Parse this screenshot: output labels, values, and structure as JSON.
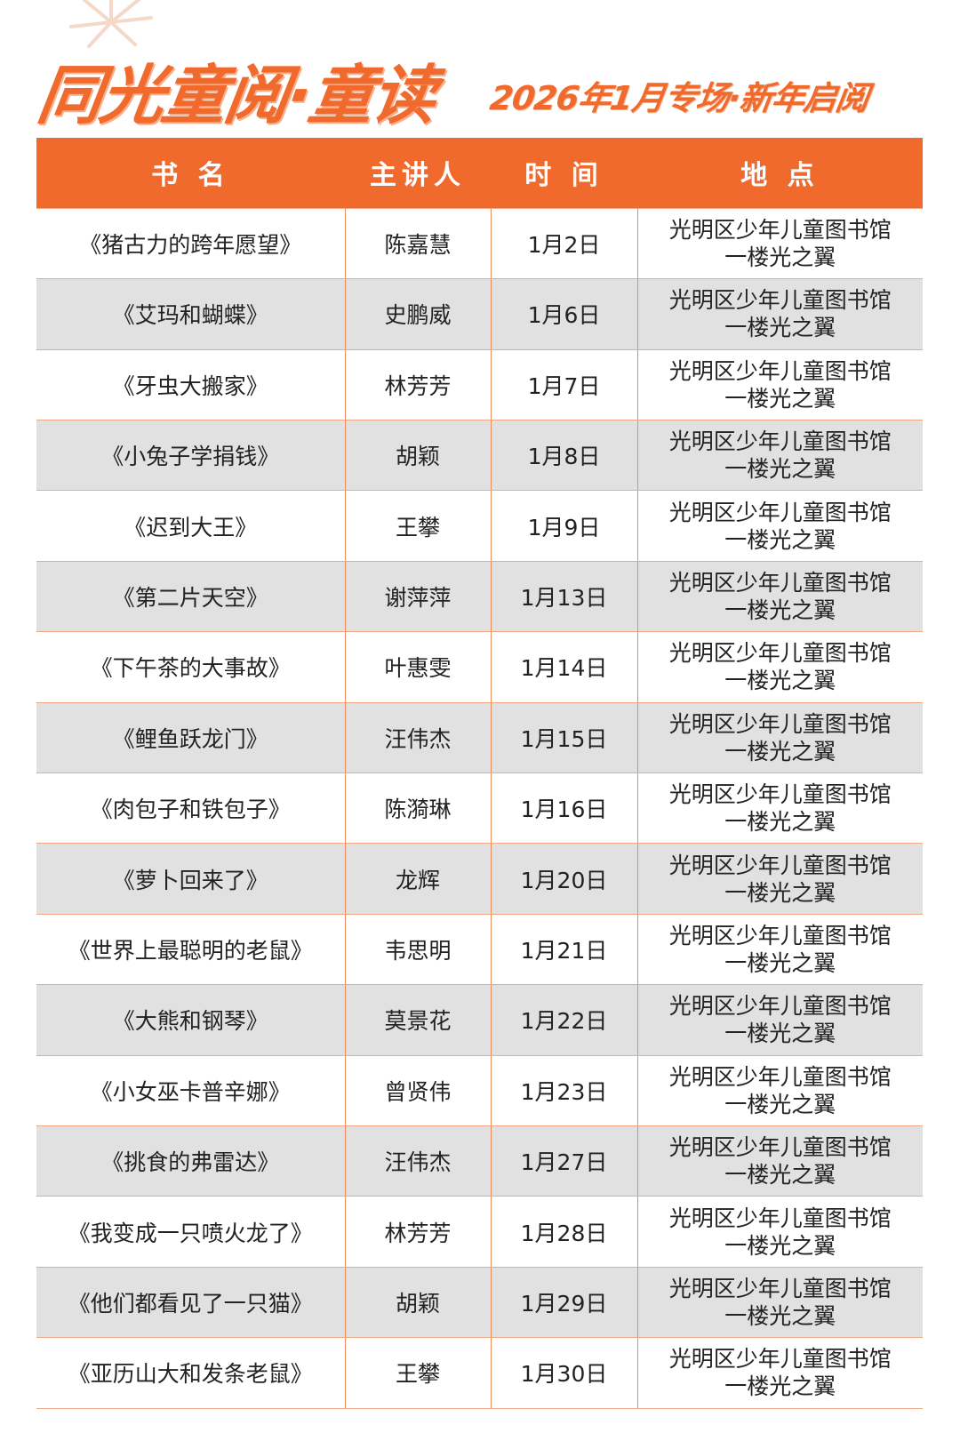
{
  "header": {
    "title": "同光童阅·童读",
    "subtitle": "2026年1月专场·新年启阅"
  },
  "table": {
    "columns": [
      "书 名",
      "主讲人",
      "时 间",
      "地 点"
    ],
    "rows": [
      {
        "book": "《猪古力的跨年愿望》",
        "speaker": "陈嘉慧",
        "date": "1月2日",
        "place1": "光明区少年儿童图书馆",
        "place2": "一楼光之翼"
      },
      {
        "book": "《艾玛和蝴蝶》",
        "speaker": "史鹏威",
        "date": "1月6日",
        "place1": "光明区少年儿童图书馆",
        "place2": "一楼光之翼"
      },
      {
        "book": "《牙虫大搬家》",
        "speaker": "林芳芳",
        "date": "1月7日",
        "place1": "光明区少年儿童图书馆",
        "place2": "一楼光之翼"
      },
      {
        "book": "《小兔子学捐钱》",
        "speaker": "胡颖",
        "date": "1月8日",
        "place1": "光明区少年儿童图书馆",
        "place2": "一楼光之翼"
      },
      {
        "book": "《迟到大王》",
        "speaker": "王攀",
        "date": "1月9日",
        "place1": "光明区少年儿童图书馆",
        "place2": "一楼光之翼"
      },
      {
        "book": "《第二片天空》",
        "speaker": "谢萍萍",
        "date": "1月13日",
        "place1": "光明区少年儿童图书馆",
        "place2": "一楼光之翼"
      },
      {
        "book": "《下午茶的大事故》",
        "speaker": "叶惠雯",
        "date": "1月14日",
        "place1": "光明区少年儿童图书馆",
        "place2": "一楼光之翼"
      },
      {
        "book": "《鲤鱼跃龙门》",
        "speaker": "汪伟杰",
        "date": "1月15日",
        "place1": "光明区少年儿童图书馆",
        "place2": "一楼光之翼"
      },
      {
        "book": "《肉包子和铁包子》",
        "speaker": "陈漪琳",
        "date": "1月16日",
        "place1": "光明区少年儿童图书馆",
        "place2": "一楼光之翼"
      },
      {
        "book": "《萝卜回来了》",
        "speaker": "龙辉",
        "date": "1月20日",
        "place1": "光明区少年儿童图书馆",
        "place2": "一楼光之翼"
      },
      {
        "book": "《世界上最聪明的老鼠》",
        "speaker": "韦思明",
        "date": "1月21日",
        "place1": "光明区少年儿童图书馆",
        "place2": "一楼光之翼"
      },
      {
        "book": "《大熊和钢琴》",
        "speaker": "莫景花",
        "date": "1月22日",
        "place1": "光明区少年儿童图书馆",
        "place2": "一楼光之翼"
      },
      {
        "book": "《小女巫卡普辛娜》",
        "speaker": "曾贤伟",
        "date": "1月23日",
        "place1": "光明区少年儿童图书馆",
        "place2": "一楼光之翼"
      },
      {
        "book": "《挑食的弗雷达》",
        "speaker": "汪伟杰",
        "date": "1月27日",
        "place1": "光明区少年儿童图书馆",
        "place2": "一楼光之翼"
      },
      {
        "book": "《我变成一只喷火龙了》",
        "speaker": "林芳芳",
        "date": "1月28日",
        "place1": "光明区少年儿童图书馆",
        "place2": "一楼光之翼"
      },
      {
        "book": "《他们都看见了一只猫》",
        "speaker": "胡颖",
        "date": "1月29日",
        "place1": "光明区少年儿童图书馆",
        "place2": "一楼光之翼"
      },
      {
        "book": "《亚历山大和发条老鼠》",
        "speaker": "王攀",
        "date": "1月30日",
        "place1": "光明区少年儿童图书馆",
        "place2": "一楼光之翼"
      }
    ]
  },
  "colors": {
    "accent": "#f06a2e",
    "row_alt": "#e1e1e1",
    "border": "#f0a882"
  }
}
